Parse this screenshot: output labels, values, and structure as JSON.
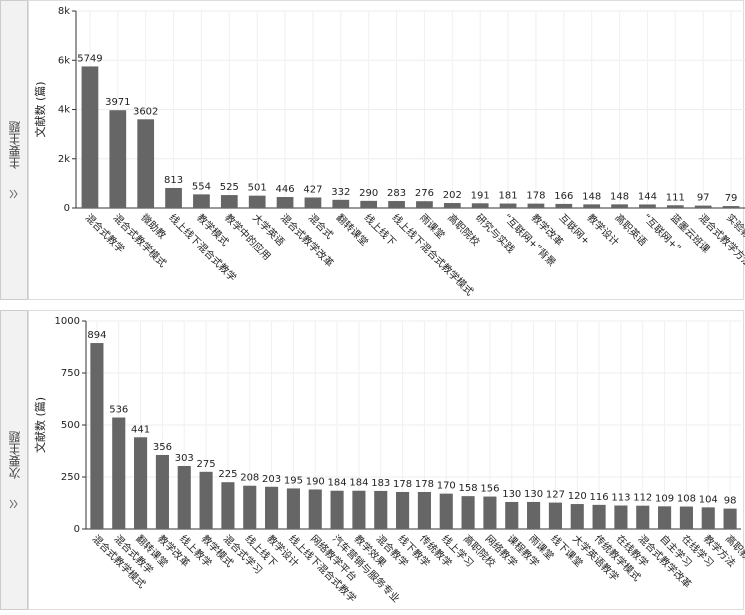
{
  "tabs": [
    "主要主题",
    "次要主题"
  ],
  "chart_data": [
    {
      "type": "bar",
      "y_label": "文献数 (篇)",
      "color": "#666666",
      "grid": true,
      "categories": [
        "混合式教学",
        "混合式教学模式",
        "微助教",
        "线上线下混合式教学",
        "教学模式",
        "教学中的应用",
        "大学英语",
        "混合式教学改革",
        "混合式",
        "翻转课堂",
        "线上线下",
        "线上线下混合式教学模式",
        "雨课堂",
        "高职院校",
        "研究与实践",
        "“互联网+”背景",
        "教学改革",
        "互联网+",
        "教学设计",
        "高职英语",
        "“互联网+”",
        "蓝墨云班课",
        "混合式教学方法",
        "实验教学"
      ],
      "values": [
        5749,
        3971,
        3602,
        813,
        554,
        525,
        501,
        446,
        427,
        332,
        290,
        283,
        276,
        202,
        191,
        181,
        178,
        166,
        148,
        148,
        144,
        111,
        97,
        79
      ],
      "ylim": [
        0,
        8000
      ],
      "yticks": [
        0,
        {
          "value": 2000,
          "label": "2k"
        },
        {
          "value": 4000,
          "label": "4k"
        },
        {
          "value": 6000,
          "label": "6k"
        },
        {
          "value": 8000,
          "label": "8k"
        }
      ]
    },
    {
      "type": "bar",
      "y_label": "文献数 (篇)",
      "color": "#666666",
      "grid": true,
      "categories": [
        "混合式教学模式",
        "混合式教学",
        "翻转课堂",
        "教学改革",
        "线上教学",
        "教学模式",
        "混合式学习",
        "线上线下",
        "教学设计",
        "线上线下混合式教学",
        "网络教学平台",
        "汽车营销与服务专业",
        "教学效果",
        "混合教学",
        "线下教学",
        "传统教学",
        "线上学习",
        "高职院校",
        "网络教学",
        "课程教学",
        "雨课堂",
        "线下课堂",
        "大学英语教学",
        "传统教学模式",
        "在线教学",
        "混合式教学改革",
        "自主学习",
        "在线学习",
        "教学方法",
        "高职教育"
      ],
      "values": [
        894,
        536,
        441,
        356,
        303,
        275,
        225,
        208,
        203,
        195,
        190,
        184,
        184,
        183,
        178,
        178,
        170,
        158,
        156,
        130,
        130,
        127,
        120,
        116,
        113,
        112,
        109,
        108,
        104,
        98
      ],
      "ylim": [
        0,
        1000
      ],
      "yticks": [
        0,
        250,
        500,
        750,
        1000
      ]
    }
  ]
}
